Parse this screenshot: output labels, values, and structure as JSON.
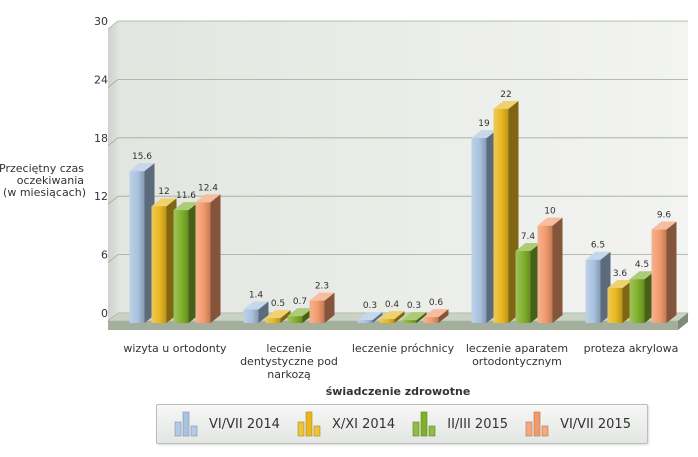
{
  "chart_data": {
    "type": "bar",
    "ylabel_lines": [
      "Przeciętny czas",
      "oczekiwania",
      "(w miesiącach)"
    ],
    "xlabel": "świadczenie zdrowotne",
    "ylim": [
      0,
      30
    ],
    "yticks": [
      "0",
      "6",
      "12",
      "18",
      "24",
      "30"
    ],
    "grid": true,
    "legend_position": "bottom",
    "categories": [
      [
        "wizyta u ortodonty"
      ],
      [
        "leczenie",
        "dentystyczne pod",
        "narkozą"
      ],
      [
        "leczenie próchnicy"
      ],
      [
        "leczenie aparatem",
        "ortodontycznym"
      ],
      [
        "proteza akrylowa"
      ]
    ],
    "series": [
      {
        "name": "VI/VII 2014",
        "values": [
          15.6,
          1.4,
          0.3,
          19,
          6.5
        ],
        "labels": [
          "15.6",
          "1.4",
          "0.3",
          "19",
          "6.5"
        ],
        "color": "#a8c2e0"
      },
      {
        "name": "X/XI 2014",
        "values": [
          12,
          0.5,
          0.4,
          22,
          3.6
        ],
        "labels": [
          "12",
          "0.5",
          "0.4",
          "22",
          "3.6"
        ],
        "color": "#e8b820"
      },
      {
        "name": "II/III 2015",
        "values": [
          11.6,
          0.7,
          0.3,
          7.4,
          4.5
        ],
        "labels": [
          "11.6",
          "0.7",
          "0.3",
          "7.4",
          "4.5"
        ],
        "color": "#7fb02a"
      },
      {
        "name": "VI/VII 2015",
        "values": [
          12.4,
          2.3,
          0.6,
          10,
          9.6
        ],
        "labels": [
          "12.4",
          "2.3",
          "0.6",
          "10",
          "9.6"
        ],
        "color": "#f29a6c"
      }
    ]
  }
}
